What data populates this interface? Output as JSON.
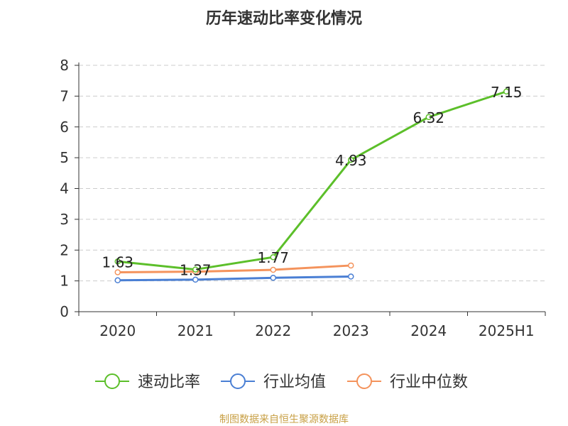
{
  "chart_data": {
    "type": "line",
    "title": "历年速动比率变化情况",
    "categories": [
      "2020",
      "2021",
      "2022",
      "2023",
      "2024",
      "2025H1"
    ],
    "ylim": [
      0,
      8
    ],
    "yticks": [
      "0",
      "1",
      "2",
      "3",
      "4",
      "5",
      "6",
      "7",
      "8"
    ],
    "grid": true,
    "legend_position": "bottom",
    "series": [
      {
        "name": "速动比率",
        "color": "#5cbf2a",
        "values": [
          1.63,
          1.37,
          1.77,
          4.93,
          6.32,
          7.15
        ],
        "labels": [
          "1.63",
          "1.37",
          "1.77",
          "4.93",
          "6.32",
          "7.15"
        ]
      },
      {
        "name": "行业均值",
        "color": "#4a7fd4",
        "values": [
          1.02,
          1.04,
          1.1,
          1.14,
          null,
          null
        ]
      },
      {
        "name": "行业中位数",
        "color": "#f4935c",
        "values": [
          1.28,
          1.3,
          1.36,
          1.5,
          null,
          null
        ]
      }
    ]
  },
  "footer": {
    "text": "制图数据来自恒生聚源数据库",
    "color": "#c8a046"
  }
}
